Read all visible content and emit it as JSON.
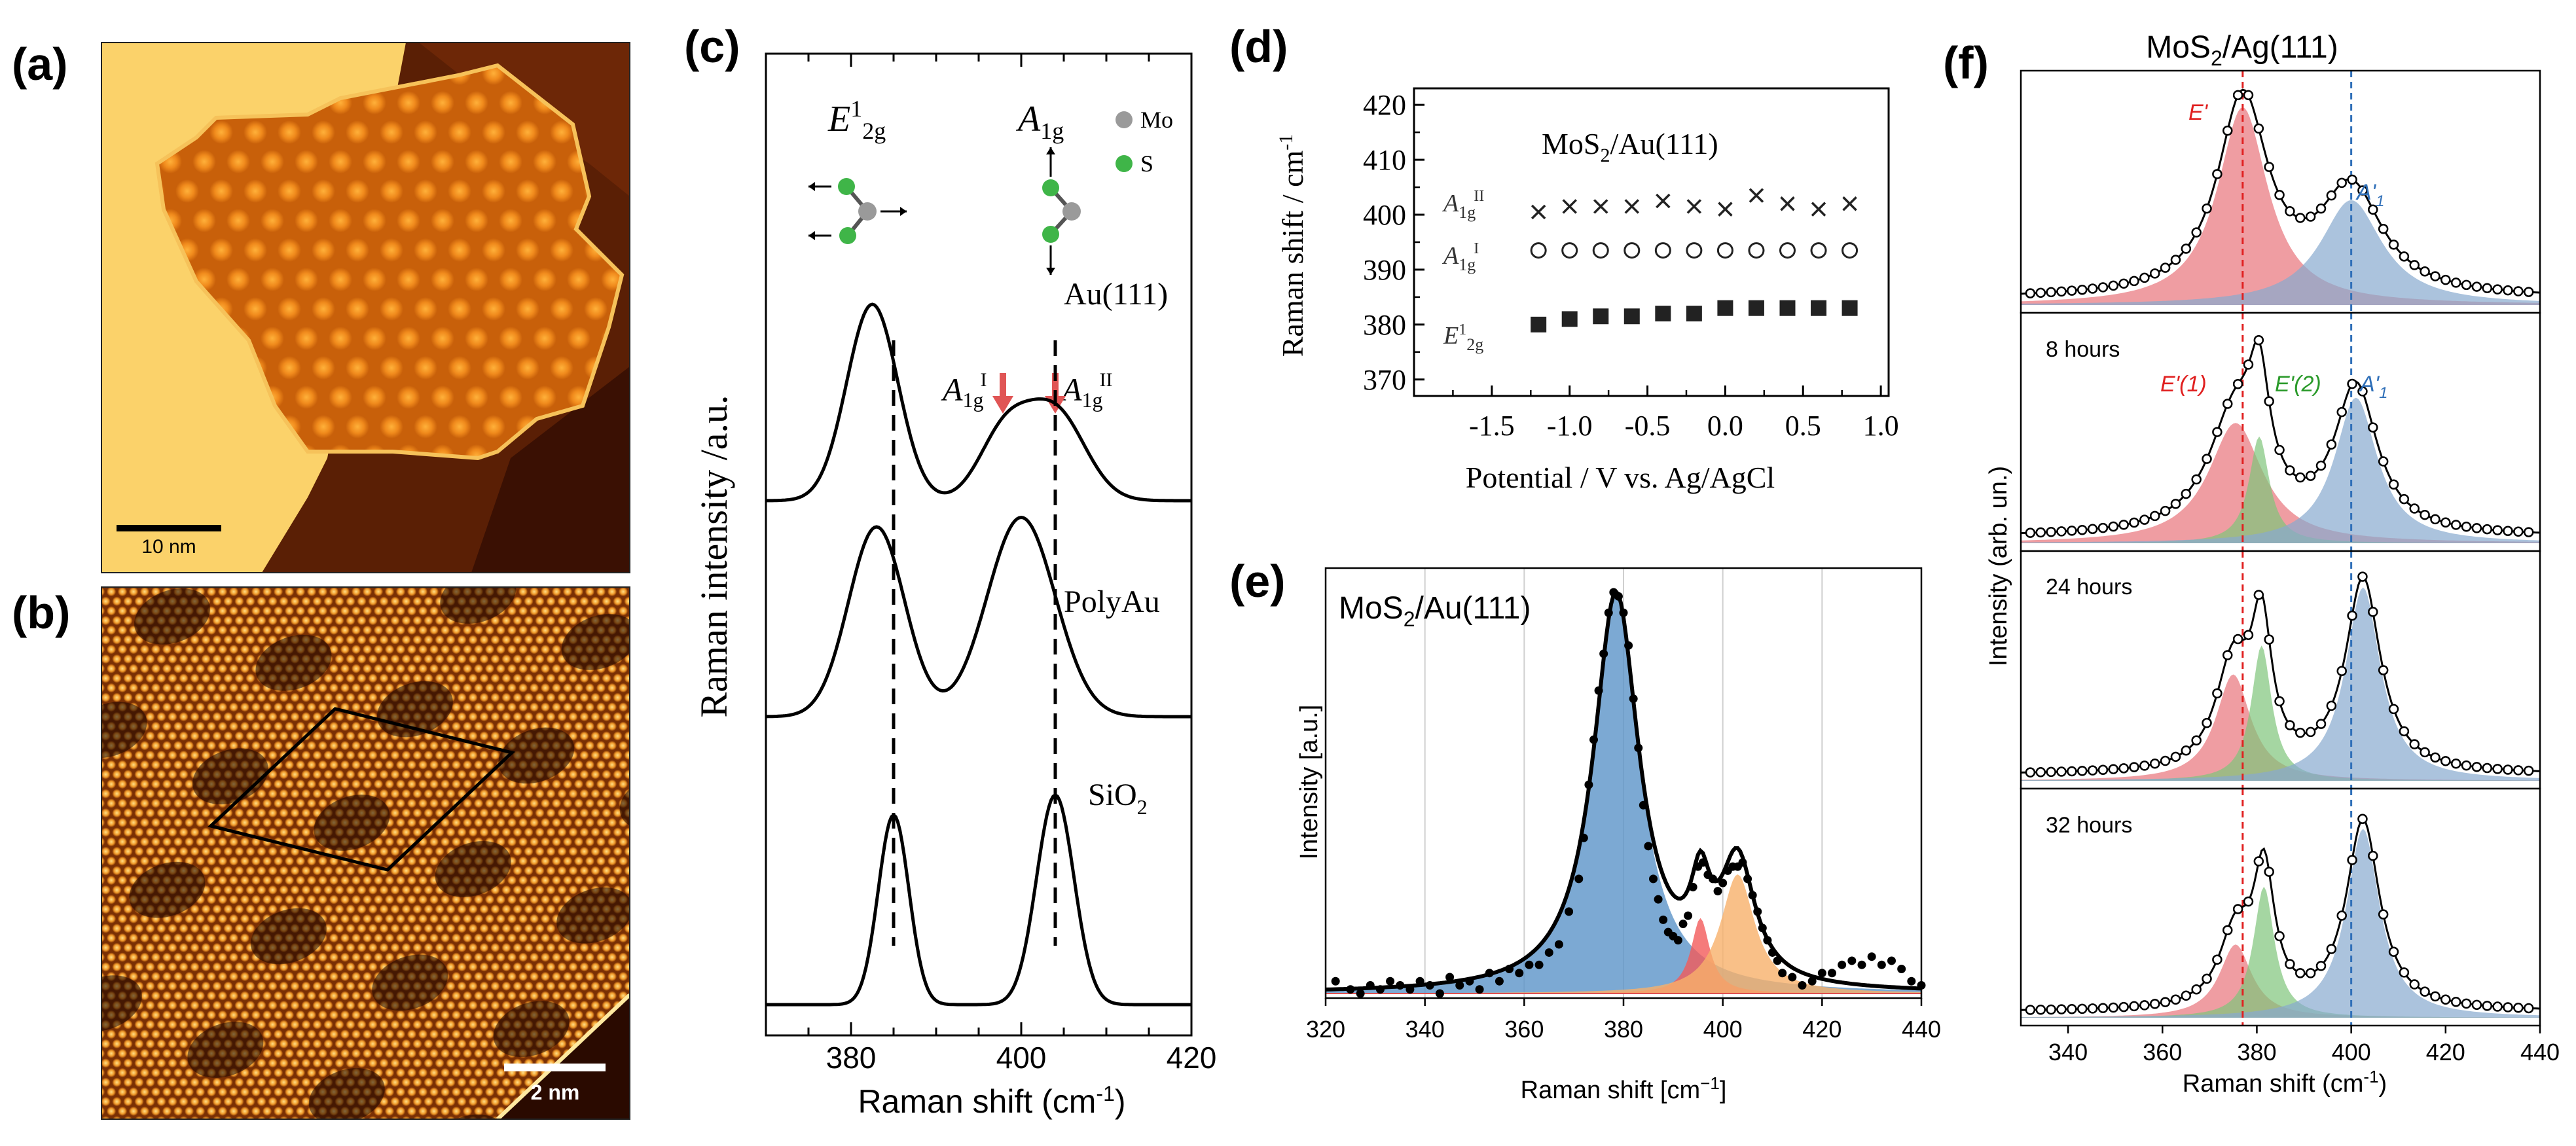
{
  "panel_labels": {
    "a": "(a)",
    "b": "(b)",
    "c": "(c)",
    "d": "(d)",
    "e": "(e)",
    "f": "(f)"
  },
  "panel_a": {
    "scalebar": "10 nm"
  },
  "panel_b": {
    "scalebar": "2 nm"
  },
  "panel_c": {
    "ylabel": "Raman intensity /a.u.",
    "xlabel": "Raman shift (cm",
    "xlabel_sup": "-1",
    "xlabel_end": ")",
    "mode1": "E",
    "mode1_sup": "1",
    "mode1_sub": "2g",
    "mode2": "A",
    "mode2_sub": "1g",
    "legend_mo": "Mo",
    "legend_s": "S",
    "peak1": "A",
    "peak1_sub": "1g",
    "peak1_sup": "I",
    "peak2": "A",
    "peak2_sub": "1g",
    "peak2_sup": "II",
    "trace_labels": [
      "Au(111)",
      "PolyAu",
      "SiO"
    ],
    "trace_sub": "2",
    "xticks": [
      "380",
      "400",
      "420"
    ]
  },
  "panel_d": {
    "ylabel": "Raman shift / cm",
    "ylabel_sup": "-1",
    "xlabel": "Potential / V vs. Ag/AgCl",
    "title": "MoS",
    "title_sub": "2",
    "title_end": "/Au(111)",
    "xticks": [
      "-1.5",
      "-1.0",
      "-0.5",
      "0.0",
      "0.5",
      "1.0"
    ],
    "yticks": [
      "420",
      "410",
      "400",
      "390",
      "380",
      "370"
    ],
    "series_labels": [
      {
        "t": "A",
        "sub": "1g",
        "sup": "II"
      },
      {
        "t": "A",
        "sub": "1g",
        "sup": "I"
      },
      {
        "t": "E",
        "sup": "1",
        "sub": "2g"
      }
    ]
  },
  "panel_e": {
    "title": "MoS",
    "title_sub": "2",
    "title_end": "/Au(111)",
    "ylabel": "Intensity [a.u.]",
    "xlabel": "Raman shift [cm",
    "xlabel_sup": "−1",
    "xlabel_end": "]",
    "xticks": [
      "320",
      "340",
      "360",
      "380",
      "400",
      "420",
      "440"
    ]
  },
  "panel_f": {
    "title": "MoS",
    "title_sub": "2",
    "title_end": "/Ag(111)",
    "ylabel": "Intensity (arb. un.)",
    "xlabel": "Raman shift (cm",
    "xlabel_sup": "-1",
    "xlabel_end": ")",
    "xticks": [
      "340",
      "360",
      "380",
      "400",
      "420",
      "440"
    ],
    "sub_labels": [
      "",
      "8 hours",
      "24 hours",
      "32 hours"
    ],
    "peak_e": "E'",
    "peak_a": "A'",
    "peak_a_sub": "1",
    "peak_e1": "E'(1)",
    "peak_e2": "E'(2)"
  },
  "colors": {
    "red_fill": "#e8737a",
    "blue_fill": "#88a9cf",
    "green_fill": "#7fc47a",
    "orange_fill": "#f2b07a",
    "dash_red": "#e02020",
    "dash_blue": "#2f6fb8",
    "e_blue": "#5b93c8",
    "e_red": "#f25a5a",
    "e_orange": "#f7b06a"
  },
  "chart_data": [
    {
      "panel": "c",
      "type": "line",
      "xlim": [
        370,
        420
      ],
      "xlabel": "Raman shift (cm-1)",
      "ylabel": "Raman intensity /a.u.",
      "series": [
        {
          "name": "Au(111)",
          "peaks": [
            {
              "x": 382.5,
              "h": 1.0,
              "w": 3.0
            },
            {
              "x": 398,
              "h": 0.33,
              "w": 3.0
            },
            {
              "x": 404,
              "h": 0.45,
              "w": 3.5
            }
          ]
        },
        {
          "name": "PolyAu",
          "peaks": [
            {
              "x": 383,
              "h": 1.0,
              "w": 3.3
            },
            {
              "x": 400,
              "h": 1.05,
              "w": 4.0
            }
          ]
        },
        {
          "name": "SiO2",
          "peaks": [
            {
              "x": 385,
              "h": 0.95,
              "w": 1.8
            },
            {
              "x": 404,
              "h": 1.05,
              "w": 2.2
            }
          ]
        }
      ],
      "dashed_lines_x": [
        385,
        404
      ]
    },
    {
      "panel": "d",
      "type": "scatter",
      "xlim": [
        -2.0,
        1.05
      ],
      "ylim": [
        367,
        423
      ],
      "x": [
        -1.2,
        -1.0,
        -0.8,
        -0.6,
        -0.4,
        -0.2,
        0.0,
        0.2,
        0.4,
        0.6,
        0.8
      ],
      "series": [
        {
          "name": "A1gII",
          "values": [
            400.5,
            401.5,
            401.5,
            401.5,
            402.5,
            401.5,
            401.0,
            403.5,
            402.0,
            401.0,
            402.0
          ]
        },
        {
          "name": "A1gI",
          "values": [
            393.5,
            393.5,
            393.5,
            393.5,
            393.5,
            393.5,
            393.5,
            393.5,
            393.5,
            393.5,
            393.5
          ]
        },
        {
          "name": "E12g",
          "values": [
            380,
            381,
            381.5,
            381.5,
            382,
            382,
            383,
            383,
            383,
            383,
            383
          ]
        }
      ]
    },
    {
      "panel": "e",
      "type": "line",
      "xlim": [
        320,
        440
      ],
      "components": [
        {
          "x0": 378.5,
          "gamma": 5.6,
          "amp": 1.0,
          "color": "blue"
        },
        {
          "x0": 395.5,
          "gamma": 2.3,
          "amp": 0.19,
          "color": "red"
        },
        {
          "x0": 403.0,
          "gamma": 4.2,
          "amp": 0.3,
          "color": "orange"
        }
      ],
      "data_points": [
        [
          322,
          0.05
        ],
        [
          325,
          0.03
        ],
        [
          327,
          0.02
        ],
        [
          329,
          0.04
        ],
        [
          331,
          0.03
        ],
        [
          333,
          0.05
        ],
        [
          335,
          0.04
        ],
        [
          337,
          0.03
        ],
        [
          339,
          0.05
        ],
        [
          341,
          0.04
        ],
        [
          343,
          0.02
        ],
        [
          345,
          0.06
        ],
        [
          347,
          0.04
        ],
        [
          349,
          0.05
        ],
        [
          351,
          0.03
        ],
        [
          353,
          0.07
        ],
        [
          355,
          0.05
        ],
        [
          357,
          0.08
        ],
        [
          359,
          0.07
        ],
        [
          361,
          0.09
        ],
        [
          363,
          0.09
        ],
        [
          365,
          0.12
        ],
        [
          367,
          0.14
        ],
        [
          369,
          0.22
        ],
        [
          371,
          0.3
        ],
        [
          372,
          0.4
        ],
        [
          373,
          0.53
        ],
        [
          374,
          0.64
        ],
        [
          375,
          0.76
        ],
        [
          376,
          0.85
        ],
        [
          377,
          0.95
        ],
        [
          378,
          1.0
        ],
        [
          379,
          0.99
        ],
        [
          380,
          0.95
        ],
        [
          381,
          0.87
        ],
        [
          382,
          0.74
        ],
        [
          383,
          0.62
        ],
        [
          384,
          0.48
        ],
        [
          385,
          0.38
        ],
        [
          386,
          0.3
        ],
        [
          387,
          0.25
        ],
        [
          388,
          0.2
        ],
        [
          389,
          0.17
        ],
        [
          390,
          0.16
        ],
        [
          391,
          0.15
        ],
        [
          392,
          0.19
        ],
        [
          393,
          0.21
        ],
        [
          394,
          0.28
        ],
        [
          395,
          0.33
        ],
        [
          396,
          0.34
        ],
        [
          397,
          0.31
        ],
        [
          398,
          0.3
        ],
        [
          399,
          0.27
        ],
        [
          400,
          0.29
        ],
        [
          401,
          0.32
        ],
        [
          402,
          0.33
        ],
        [
          403,
          0.33
        ],
        [
          404,
          0.34
        ],
        [
          405,
          0.3
        ],
        [
          406,
          0.26
        ],
        [
          407,
          0.22
        ],
        [
          408,
          0.18
        ],
        [
          409,
          0.15
        ],
        [
          410,
          0.12
        ],
        [
          411,
          0.1
        ],
        [
          412,
          0.07
        ],
        [
          414,
          0.06
        ],
        [
          416,
          0.04
        ],
        [
          418,
          0.05
        ],
        [
          420,
          0.07
        ],
        [
          422,
          0.07
        ],
        [
          424,
          0.09
        ],
        [
          426,
          0.1
        ],
        [
          428,
          0.09
        ],
        [
          430,
          0.11
        ],
        [
          432,
          0.09
        ],
        [
          434,
          0.1
        ],
        [
          436,
          0.08
        ],
        [
          438,
          0.05
        ],
        [
          440,
          0.04
        ]
      ]
    },
    {
      "panel": "f",
      "type": "line",
      "xlim": [
        330,
        440
      ],
      "subplots": [
        {
          "label": "",
          "components": [
            {
              "x0": 377,
              "gamma": 6.5,
              "amp": 1.0,
              "color": "red"
            },
            {
              "x0": 400,
              "gamma": 8.0,
              "amp": 0.53,
              "color": "blue"
            }
          ]
        },
        {
          "label": "8 hours",
          "components": [
            {
              "x0": 375.5,
              "gamma": 7.0,
              "amp": 0.62,
              "color": "red"
            },
            {
              "x0": 380.5,
              "gamma": 2.6,
              "amp": 0.55,
              "color": "green"
            },
            {
              "x0": 401,
              "gamma": 5.5,
              "amp": 0.75,
              "color": "blue"
            }
          ]
        },
        {
          "label": "24 hours",
          "components": [
            {
              "x0": 375,
              "gamma": 4.5,
              "amp": 0.55,
              "color": "red"
            },
            {
              "x0": 381,
              "gamma": 2.6,
              "amp": 0.7,
              "color": "green"
            },
            {
              "x0": 402.5,
              "gamma": 4.5,
              "amp": 1.0,
              "color": "blue"
            }
          ]
        },
        {
          "label": "32 hours",
          "components": [
            {
              "x0": 375.5,
              "gamma": 4.2,
              "amp": 0.38,
              "color": "red"
            },
            {
              "x0": 381.5,
              "gamma": 2.7,
              "amp": 0.68,
              "color": "green"
            },
            {
              "x0": 402.5,
              "gamma": 4.3,
              "amp": 0.98,
              "color": "blue"
            }
          ]
        }
      ],
      "dashed_lines_x": [
        377,
        400
      ]
    }
  ]
}
